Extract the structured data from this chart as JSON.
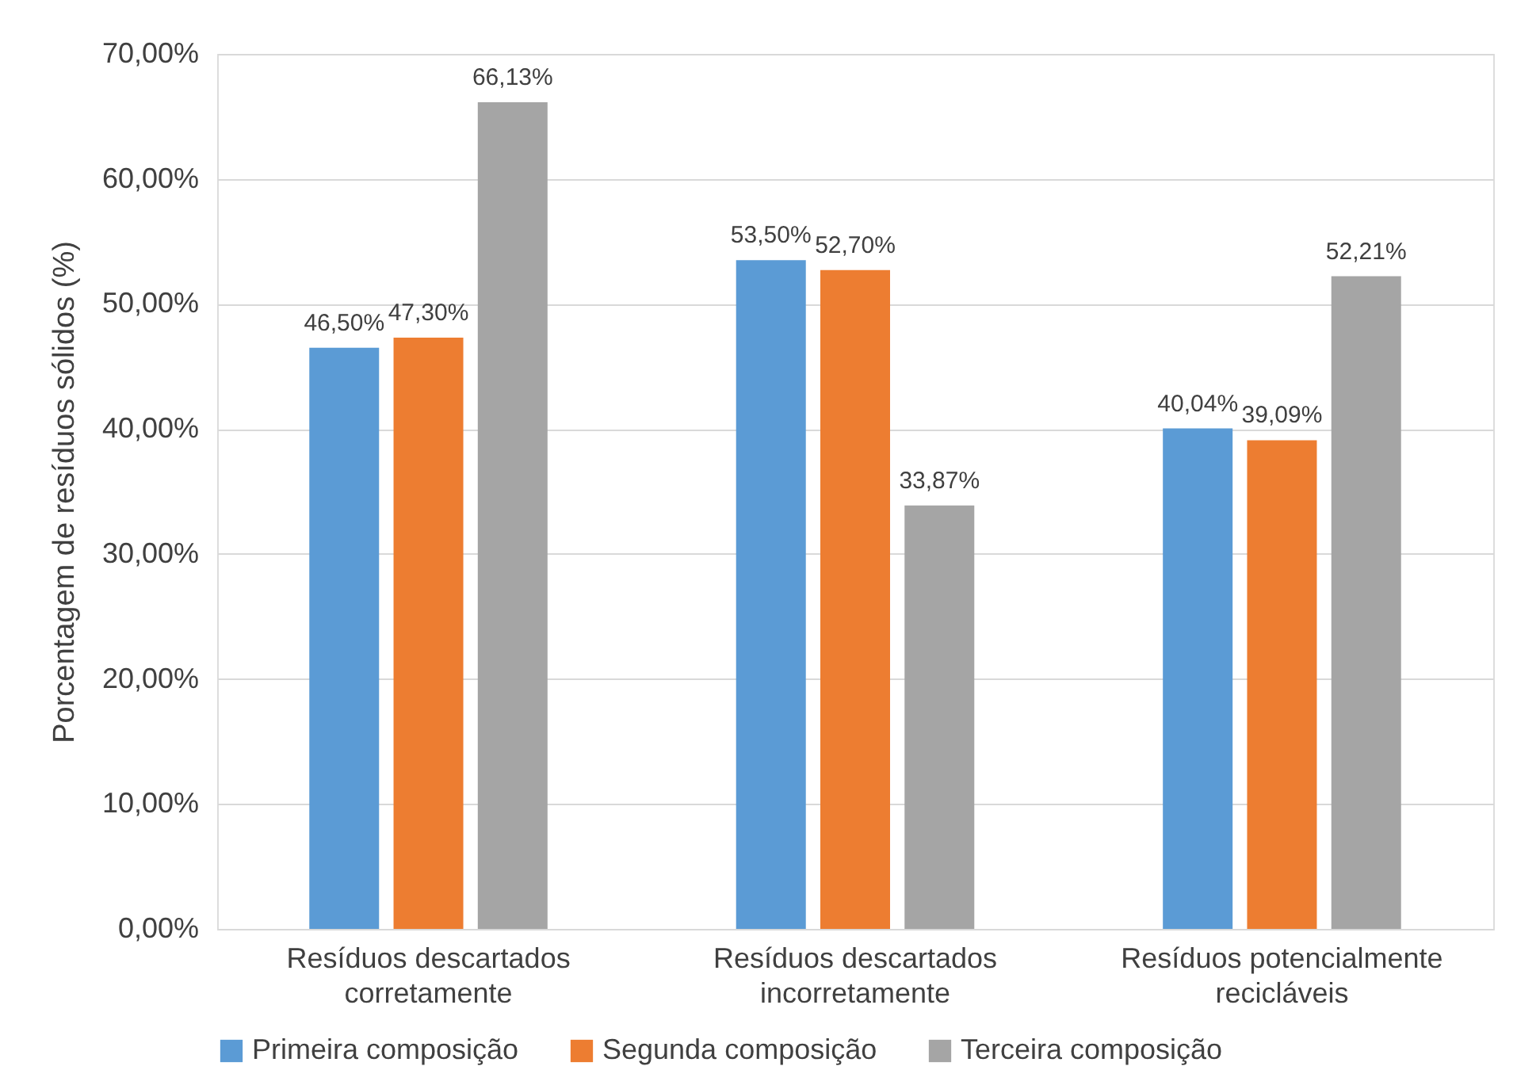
{
  "chart_data": {
    "type": "bar",
    "ylabel": "Porcentagem de resíduos sólidos (%)",
    "categories": [
      "Resíduos descartados\ncorretamente",
      "Resíduos descartados\nincorretamente",
      "Resíduos potencialmente\nrecicláveis"
    ],
    "series": [
      {
        "name": "Primeira composição",
        "color": "#5b9bd5",
        "values": [
          46.5,
          53.5,
          40.04
        ],
        "value_labels": [
          "46,50%",
          "53,50%",
          "40,04%"
        ]
      },
      {
        "name": "Segunda composição",
        "color": "#ed7d31",
        "values": [
          47.3,
          52.7,
          39.09
        ],
        "value_labels": [
          "47,30%",
          "52,70%",
          "39,09%"
        ]
      },
      {
        "name": "Terceira composição",
        "color": "#a5a5a5",
        "values": [
          66.13,
          33.87,
          52.21
        ],
        "value_labels": [
          "66,13%",
          "33,87%",
          "52,21%"
        ]
      }
    ],
    "ylim": [
      0,
      70
    ],
    "yticks": [
      {
        "value": 0,
        "label": "0,00%"
      },
      {
        "value": 10,
        "label": "10,00%"
      },
      {
        "value": 20,
        "label": "20,00%"
      },
      {
        "value": 30,
        "label": "30,00%"
      },
      {
        "value": 40,
        "label": "40,00%"
      },
      {
        "value": 50,
        "label": "50,00%"
      },
      {
        "value": 60,
        "label": "60,00%"
      },
      {
        "value": 70,
        "label": "70,00%"
      }
    ],
    "grid": "y",
    "legend": "bottom"
  }
}
